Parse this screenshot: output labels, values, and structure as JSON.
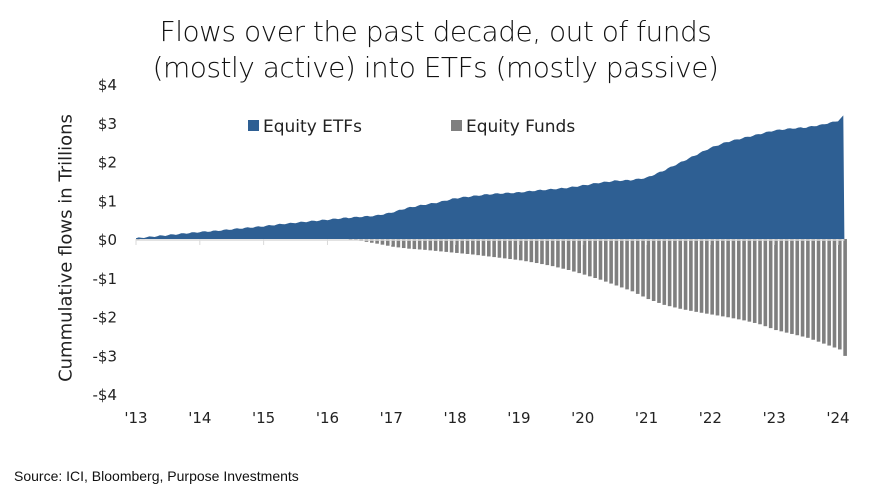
{
  "chart_data": {
    "type": "area",
    "title": [
      "Flows over the past decade, out of funds",
      "(mostly active) into ETFs (mostly passive)"
    ],
    "ylabel": "Cummulative flows in Trillions",
    "xlabel": "",
    "ylim": [
      -4,
      4
    ],
    "yticks": [
      "$4",
      "$3",
      "$2",
      "$1",
      "$0",
      "-$1",
      "-$2",
      "-$3",
      "-$4"
    ],
    "ytick_values": [
      4,
      3,
      2,
      1,
      0,
      -1,
      -2,
      -3,
      -4
    ],
    "xticks": [
      "'13",
      "'14",
      "'15",
      "'16",
      "'17",
      "'18",
      "'19",
      "'20",
      "'21",
      "'22",
      "'23",
      "'24"
    ],
    "xlim": [
      2013,
      2024.1
    ],
    "legend_position": "top-center",
    "x": [
      2013.0,
      2013.25,
      2013.5,
      2013.75,
      2014.0,
      2014.25,
      2014.5,
      2014.75,
      2015.0,
      2015.25,
      2015.5,
      2015.75,
      2016.0,
      2016.25,
      2016.5,
      2016.75,
      2017.0,
      2017.25,
      2017.5,
      2017.75,
      2018.0,
      2018.25,
      2018.5,
      2018.75,
      2019.0,
      2019.25,
      2019.5,
      2019.75,
      2020.0,
      2020.25,
      2020.5,
      2020.75,
      2021.0,
      2021.25,
      2021.5,
      2021.75,
      2022.0,
      2022.25,
      2022.5,
      2022.75,
      2023.0,
      2023.25,
      2023.5,
      2023.75,
      2024.0,
      2024.1
    ],
    "series": [
      {
        "name": "Equity ETFs",
        "color": "#2e5f93",
        "style": "area",
        "values": [
          0.02,
          0.06,
          0.1,
          0.14,
          0.18,
          0.21,
          0.25,
          0.29,
          0.33,
          0.38,
          0.42,
          0.46,
          0.5,
          0.54,
          0.57,
          0.6,
          0.68,
          0.8,
          0.88,
          0.95,
          1.05,
          1.1,
          1.15,
          1.18,
          1.2,
          1.25,
          1.28,
          1.32,
          1.38,
          1.45,
          1.5,
          1.52,
          1.58,
          1.75,
          1.95,
          2.15,
          2.35,
          2.5,
          2.6,
          2.7,
          2.8,
          2.85,
          2.88,
          2.95,
          3.05,
          3.2
        ]
      },
      {
        "name": "Equity Funds",
        "color": "#7f7f7f",
        "style": "bar",
        "values": [
          0.0,
          0.03,
          0.06,
          0.1,
          0.13,
          0.15,
          0.17,
          0.19,
          0.2,
          0.2,
          0.18,
          0.14,
          0.08,
          0.02,
          -0.05,
          -0.12,
          -0.2,
          -0.25,
          -0.28,
          -0.32,
          -0.36,
          -0.4,
          -0.45,
          -0.5,
          -0.55,
          -0.62,
          -0.7,
          -0.8,
          -0.92,
          -1.05,
          -1.2,
          -1.35,
          -1.55,
          -1.7,
          -1.8,
          -1.88,
          -1.95,
          -2.02,
          -2.1,
          -2.2,
          -2.35,
          -2.45,
          -2.55,
          -2.7,
          -2.85,
          -3.05
        ]
      }
    ]
  },
  "source": "Source: ICI, Bloomberg, Purpose Investments"
}
